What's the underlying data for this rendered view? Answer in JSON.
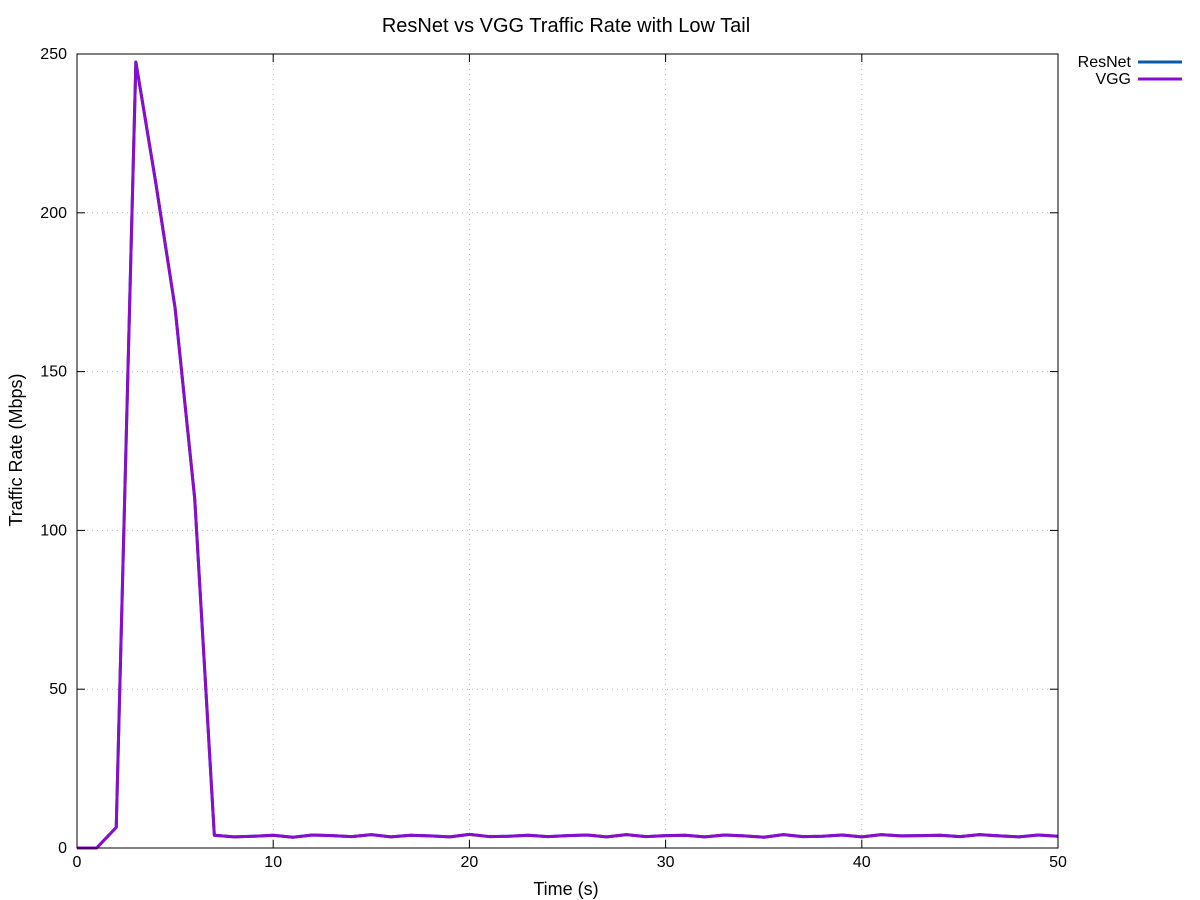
{
  "chart_data": {
    "type": "line",
    "title": "ResNet vs VGG Traffic Rate with Low Tail",
    "xlabel": "Time (s)",
    "ylabel": "Traffic Rate (Mbps)",
    "xlim": [
      0,
      50
    ],
    "ylim": [
      0,
      250
    ],
    "x_ticks": [
      0,
      10,
      20,
      30,
      40,
      50
    ],
    "y_ticks": [
      0,
      50,
      100,
      150,
      200,
      250
    ],
    "grid": true,
    "legend_position": "top-right",
    "x": [
      0,
      1,
      2,
      3,
      4,
      5,
      6,
      7,
      8,
      9,
      10,
      11,
      12,
      13,
      14,
      15,
      16,
      17,
      18,
      19,
      20,
      21,
      22,
      23,
      24,
      25,
      26,
      27,
      28,
      29,
      30,
      31,
      32,
      33,
      34,
      35,
      36,
      37,
      38,
      39,
      40,
      41,
      42,
      43,
      44,
      45,
      46,
      47,
      48,
      49,
      50
    ],
    "series": [
      {
        "name": "ResNet",
        "color": "#0b5aa8",
        "values": [
          0,
          0,
          6.5,
          247.5,
          210,
          170,
          110,
          4.0,
          3.5,
          3.7,
          4.0,
          3.4,
          4.1,
          3.9,
          3.6,
          4.2,
          3.5,
          4.0,
          3.8,
          3.5,
          4.3,
          3.6,
          3.7,
          4.0,
          3.6,
          3.9,
          4.1,
          3.5,
          4.2,
          3.6,
          3.9,
          4.0,
          3.5,
          4.1,
          3.8,
          3.4,
          4.2,
          3.6,
          3.7,
          4.1,
          3.5,
          4.2,
          3.8,
          3.9,
          4.0,
          3.6,
          4.2,
          3.8,
          3.5,
          4.1,
          3.7
        ]
      },
      {
        "name": "VGG",
        "color": "#8a0ccf",
        "values": [
          0,
          0,
          6.5,
          247.5,
          210,
          170,
          110,
          4.0,
          3.5,
          3.7,
          4.0,
          3.4,
          4.1,
          3.9,
          3.6,
          4.2,
          3.5,
          4.0,
          3.8,
          3.5,
          4.3,
          3.6,
          3.7,
          4.0,
          3.6,
          3.9,
          4.1,
          3.5,
          4.2,
          3.6,
          3.9,
          4.0,
          3.5,
          4.1,
          3.8,
          3.4,
          4.2,
          3.6,
          3.7,
          4.1,
          3.5,
          4.2,
          3.8,
          3.9,
          4.0,
          3.6,
          4.2,
          3.8,
          3.5,
          4.1,
          3.7
        ]
      }
    ]
  }
}
